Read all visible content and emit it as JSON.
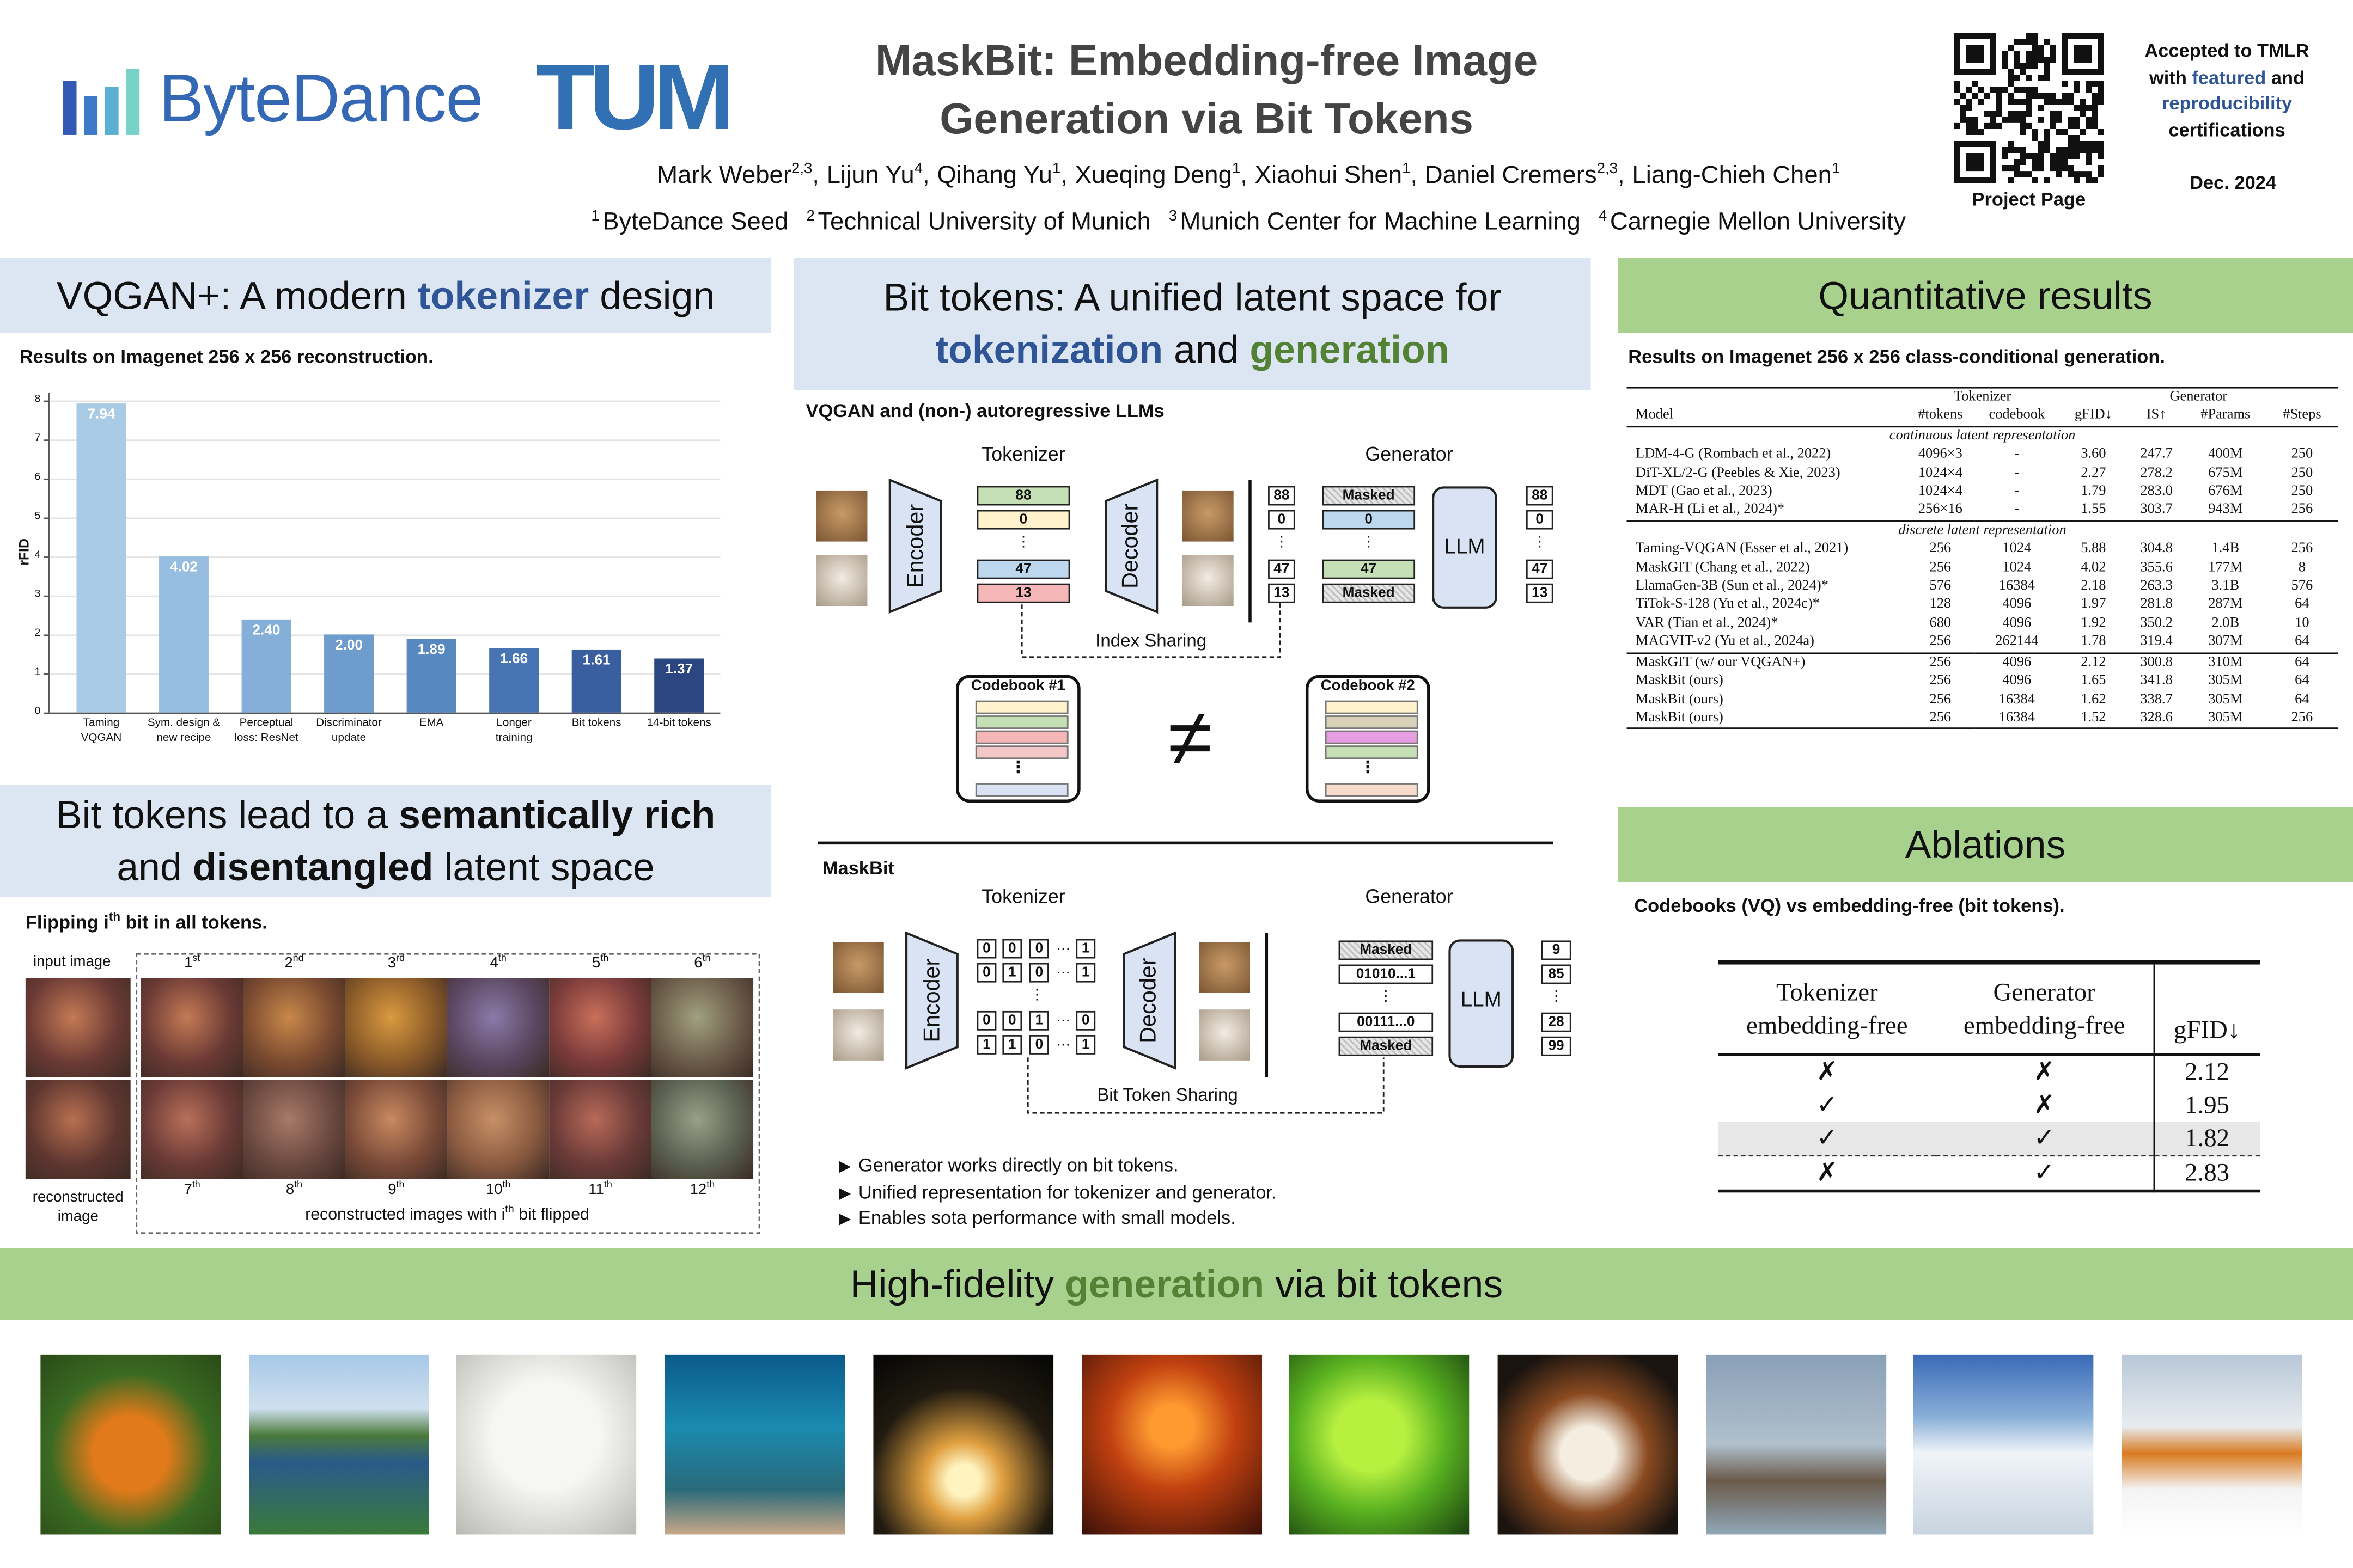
{
  "header": {
    "logos": [
      "ByteDance",
      "TUM"
    ],
    "title": [
      "MaskBit: Embedding-free Image",
      "Generation via Bit Tokens"
    ],
    "authors": [
      {
        "name": "Mark Weber",
        "sup": "2,3"
      },
      {
        "name": "Lijun Yu",
        "sup": "4"
      },
      {
        "name": "Qihang Yu",
        "sup": "1"
      },
      {
        "name": "Xueqing Deng",
        "sup": "1"
      },
      {
        "name": "Xiaohui Shen",
        "sup": "1"
      },
      {
        "name": "Daniel Cremers",
        "sup": "2,3"
      },
      {
        "name": "Liang-Chieh Chen",
        "sup": "1"
      }
    ],
    "author_separator": ",",
    "affiliations": [
      {
        "sup": "1",
        "name": "ByteDance Seed"
      },
      {
        "sup": "2",
        "name": "Technical University of Munich"
      },
      {
        "sup": "3",
        "name": "Munich Center for Machine Learning"
      },
      {
        "sup": "4",
        "name": "Carnegie Mellon University"
      }
    ],
    "qr_caption": "Project Page",
    "acceptance": [
      [
        {
          "text": "Accepted to TMLR"
        }
      ],
      [
        {
          "text": "with "
        },
        {
          "text": "featured",
          "color": "#2f5597"
        },
        {
          "text": " and"
        }
      ],
      [
        {
          "text": "reproducibility",
          "color": "#2f5597"
        }
      ],
      [
        {
          "text": "certifications"
        }
      ]
    ],
    "date": "Dec. 2024"
  },
  "vqgan": {
    "heading": [
      {
        "text": "VQGAN+: A modern "
      },
      {
        "text": "tokenizer",
        "color": "#2f5597",
        "bold": true
      },
      {
        "text": " design"
      }
    ]
  },
  "chart_data": {
    "type": "bar",
    "caption": "Results on Imagenet 256 x 256 reconstruction.",
    "y_label": "rFID",
    "categories": [
      "Taming\nVQGAN",
      "Sym. design &\nnew recipe",
      "Perceptual\nloss: ResNet",
      "Discriminator\nupdate",
      "EMA",
      "Longer\ntraining",
      "Bit tokens",
      "14-bit tokens"
    ],
    "values": [
      7.94,
      4.02,
      2.4,
      2.0,
      1.89,
      1.66,
      1.61,
      1.37
    ],
    "value_labels": [
      "7.94",
      "4.02",
      "2.40",
      "2.00",
      "1.89",
      "1.66",
      "1.61",
      "1.37"
    ],
    "colors": [
      "#a9cbe6",
      "#97bde0",
      "#85afd8",
      "#6e9dcd",
      "#5888c0",
      "#4774b3",
      "#3a5fa1",
      "#2b4680"
    ],
    "ylim": [
      0,
      8.2
    ],
    "yticks": [
      0,
      1,
      2,
      3,
      4,
      5,
      6,
      7,
      8
    ],
    "grid": true
  },
  "semantic": {
    "heading": [
      {
        "text": "Bit tokens lead to a "
      },
      {
        "text": "semantically rich",
        "bold": true
      },
      {
        "text": "\nand "
      },
      {
        "text": "disentangled",
        "bold": true
      },
      {
        "text": " latent space"
      }
    ],
    "caption": [
      {
        "text": "Flipping i"
      },
      {
        "sup": "th"
      },
      {
        "text": " bit in all tokens."
      }
    ],
    "input_label": "input image",
    "reconstructed_label": "reconstructed\nimage",
    "ordinals": [
      {
        "n": "1",
        "sup": "st"
      },
      {
        "n": "2",
        "sup": "nd"
      },
      {
        "n": "3",
        "sup": "rd"
      },
      {
        "n": "4",
        "sup": "th"
      },
      {
        "n": "5",
        "sup": "th"
      },
      {
        "n": "6",
        "sup": "th"
      },
      {
        "n": "7",
        "sup": "th"
      },
      {
        "n": "8",
        "sup": "th"
      },
      {
        "n": "9",
        "sup": "th"
      },
      {
        "n": "10",
        "sup": "th"
      },
      {
        "n": "11",
        "sup": "th"
      },
      {
        "n": "12",
        "sup": "th"
      }
    ],
    "footer": [
      {
        "text": "reconstructed images with i"
      },
      {
        "sup": "th"
      },
      {
        "text": " bit flipped"
      }
    ]
  },
  "bit_tokens": {
    "heading": [
      {
        "text": "Bit tokens: A unified latent space for\n"
      },
      {
        "text": "tokenization",
        "color": "#2f5597",
        "bold": true
      },
      {
        "text": " and "
      },
      {
        "text": "generation",
        "color": "#548235",
        "bold": true
      }
    ],
    "vqgan_llm": {
      "title": "VQGAN and (non-) autoregressive LLMs",
      "tokenizer": "Tokenizer",
      "generator": "Generator",
      "encoder": "Encoder",
      "decoder": "Decoder",
      "llm": "LLM",
      "tokens": [
        "88",
        "0",
        "⋮",
        "47",
        "13"
      ],
      "decoded_tokens": [
        "88",
        "0",
        "⋮",
        "47",
        "13"
      ],
      "generator_input": [
        "Masked",
        "0",
        "⋮",
        "47",
        "Masked"
      ],
      "generator_output": [
        "88",
        "0",
        "⋮",
        "47",
        "13"
      ],
      "sharing": "Index Sharing",
      "codebooks": [
        "Codebook #1",
        "Codebook #2"
      ],
      "codebook_ellipsis": "⋮",
      "not_equal": "≠"
    },
    "maskbit": {
      "title": "MaskBit",
      "tokenizer": "Tokenizer",
      "generator": "Generator",
      "encoder": "Encoder",
      "decoder": "Decoder",
      "llm": "LLM",
      "bit_tokens": [
        [
          "0",
          "0",
          "0",
          "…",
          "1"
        ],
        [
          "0",
          "1",
          "0",
          "…",
          "1"
        ],
        [
          "⋮"
        ],
        [
          "0",
          "0",
          "1",
          "…",
          "0"
        ],
        [
          "1",
          "1",
          "0",
          "…",
          "1"
        ]
      ],
      "generator_input": [
        "Masked",
        "01010...1",
        "⋮",
        "00111...0",
        "Masked"
      ],
      "generator_output": [
        "9",
        "85",
        "⋮",
        "28",
        "99"
      ],
      "sharing": "Bit Token Sharing"
    },
    "bullets": [
      "Generator works directly on bit tokens.",
      "Unified representation for tokenizer and generator.",
      "Enables sota performance with small models."
    ]
  },
  "quant": {
    "heading": [
      {
        "text": "Quantitative results"
      }
    ],
    "caption": "Results on Imagenet 256 x 256 class-conditional generation.",
    "table": {
      "group_headers": [
        "Tokenizer",
        "Generator"
      ],
      "columns": [
        "Model",
        "#tokens",
        "codebook",
        "gFID↓",
        "IS↑",
        "#Params",
        "#Steps"
      ],
      "sections": [
        {
          "label": "continuous latent representation",
          "rows": [
            [
              "LDM-4-G (Rombach et al., 2022)",
              "4096×3",
              "-",
              "3.60",
              "247.7",
              "400M",
              "250"
            ],
            [
              "DiT-XL/2-G (Peebles & Xie, 2023)",
              "1024×4",
              "-",
              "2.27",
              "278.2",
              "675M",
              "250"
            ],
            [
              "MDT (Gao et al., 2023)",
              "1024×4",
              "-",
              "1.79",
              "283.0",
              "676M",
              "250"
            ],
            [
              "MAR-H (Li et al., 2024)*",
              "256×16",
              "-",
              "1.55",
              "303.7",
              "943M",
              "256"
            ]
          ]
        },
        {
          "label": "discrete latent representation",
          "rows": [
            [
              "Taming-VQGAN (Esser et al., 2021)",
              "256",
              "1024",
              "5.88",
              "304.8",
              "1.4B",
              "256"
            ],
            [
              "MaskGIT (Chang et al., 2022)",
              "256",
              "1024",
              "4.02",
              "355.6",
              "177M",
              "8"
            ],
            [
              "LlamaGen-3B (Sun et al., 2024)*",
              "576",
              "16384",
              "2.18",
              "263.3",
              "3.1B",
              "576"
            ],
            [
              "TiTok-S-128 (Yu et al., 2024c)*",
              "128",
              "4096",
              "1.97",
              "281.8",
              "287M",
              "64"
            ],
            [
              "VAR (Tian et al., 2024)*",
              "680",
              "4096",
              "1.92",
              "350.2",
              "2.0B",
              "10"
            ],
            [
              "MAGVIT-v2 (Yu et al., 2024a)",
              "256",
              "262144",
              "1.78",
              "319.4",
              "307M",
              "64"
            ]
          ]
        },
        {
          "rows": [
            [
              "MaskGIT (w/ our VQGAN+)",
              "256",
              "4096",
              "2.12",
              "300.8",
              "310M",
              "64"
            ],
            [
              "MaskBit (ours)",
              "256",
              "4096",
              "1.65",
              "341.8",
              "305M",
              "64"
            ],
            [
              "MaskBit (ours)",
              "256",
              "16384",
              "1.62",
              "338.7",
              "305M",
              "64"
            ],
            [
              "MaskBit (ours)",
              "256",
              "16384",
              "1.52",
              "328.6",
              "305M",
              "256"
            ]
          ]
        }
      ]
    }
  },
  "ablation": {
    "heading": [
      {
        "text": "Ablations"
      }
    ],
    "caption": "Codebooks (VQ) vs embedding-free (bit tokens).",
    "table": {
      "columns": [
        "Tokenizer\nembedding-free",
        "Generator\nembedding-free",
        "gFID↓"
      ],
      "rows": [
        [
          "✗",
          "✗",
          "2.12"
        ],
        [
          "✓",
          "✗",
          "1.95"
        ],
        [
          "✓",
          "✓",
          "1.82"
        ],
        [
          "✗",
          "✓",
          "2.83"
        ]
      ],
      "highlight_row": 2
    }
  },
  "generation": {
    "heading": [
      {
        "text": "High-fidelity "
      },
      {
        "text": "generation",
        "color": "#548235",
        "bold": true
      },
      {
        "text": " via bit tokens"
      }
    ]
  }
}
